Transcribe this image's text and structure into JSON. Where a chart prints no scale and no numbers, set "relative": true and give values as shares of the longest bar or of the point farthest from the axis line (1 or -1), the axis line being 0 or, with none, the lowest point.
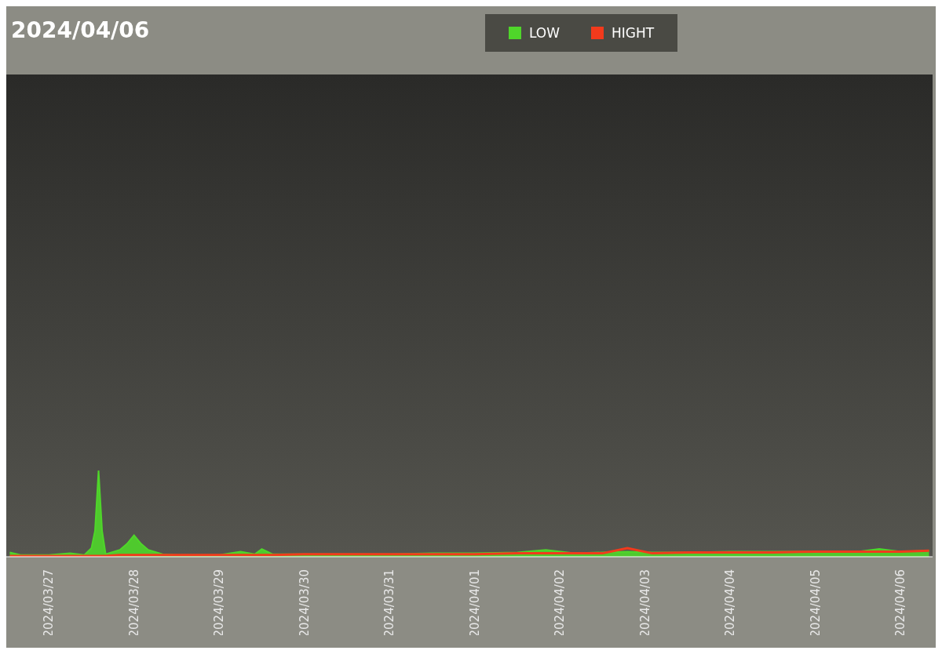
{
  "chart_data": {
    "type": "area",
    "title": "2024/04/06",
    "relative": true,
    "legend": "top",
    "x": [
      "2024-03-26T13:00",
      "2024-03-26T16:00",
      "2024-03-27T00:00",
      "2024-03-27T06:00",
      "2024-03-27T10:00",
      "2024-03-27T12:00",
      "2024-03-27T13:00",
      "2024-03-27T14:00",
      "2024-03-27T15:00",
      "2024-03-27T16:00",
      "2024-03-27T20:00",
      "2024-03-27T22:00",
      "2024-03-28T00:00",
      "2024-03-28T02:00",
      "2024-03-28T04:00",
      "2024-03-28T08:00",
      "2024-03-28T12:00",
      "2024-03-29T00:00",
      "2024-03-29T06:00",
      "2024-03-29T10:00",
      "2024-03-29T12:00",
      "2024-03-29T15:00",
      "2024-03-30T00:00",
      "2024-03-30T12:00",
      "2024-03-31T00:00",
      "2024-03-31T12:00",
      "2024-04-01T00:00",
      "2024-04-01T12:00",
      "2024-04-01T20:00",
      "2024-04-02T04:00",
      "2024-04-02T12:00",
      "2024-04-02T19:00",
      "2024-04-03T02:00",
      "2024-04-03T12:00",
      "2024-04-04T00:00",
      "2024-04-04T12:00",
      "2024-04-05T00:00",
      "2024-04-05T12:00",
      "2024-04-05T18:00",
      "2024-04-06T00:00",
      "2024-04-06T08:00"
    ],
    "xlim": [
      "2024-03-26T12:00",
      "2024-04-06T09:00"
    ],
    "xticks": [
      {
        "value": "2024-03-27",
        "label": "2024/03/27"
      },
      {
        "value": "2024-03-28",
        "label": "2024/03/28"
      },
      {
        "value": "2024-03-29",
        "label": "2024/03/29"
      },
      {
        "value": "2024-03-30",
        "label": "2024/03/30"
      },
      {
        "value": "2024-03-31",
        "label": "2024/03/31"
      },
      {
        "value": "2024-04-01",
        "label": "2024/04/01"
      },
      {
        "value": "2024-04-02",
        "label": "2024/04/02"
      },
      {
        "value": "2024-04-03",
        "label": "2024/04/03"
      },
      {
        "value": "2024-04-04",
        "label": "2024/04/04"
      },
      {
        "value": "2024-04-05",
        "label": "2024/04/05"
      },
      {
        "value": "2024-04-06",
        "label": "2024/04/06"
      }
    ],
    "series": [
      {
        "name": "LOW",
        "color": "#4fd62a",
        "values": [
          0.05,
          0.02,
          0.02,
          0.04,
          0.02,
          0.1,
          0.3,
          1,
          0.3,
          0.03,
          0.08,
          0.15,
          0.25,
          0.15,
          0.08,
          0.03,
          0.02,
          0.02,
          0.06,
          0.03,
          0.09,
          0.03,
          0.03,
          0.03,
          0.03,
          0.04,
          0.04,
          0.05,
          0.08,
          0.04,
          0.05,
          0.06,
          0.05,
          0.05,
          0.06,
          0.06,
          0.06,
          0.06,
          0.09,
          0.06,
          0.07
        ]
      },
      {
        "name": "HIGHT",
        "color": "#f23a1c",
        "type": "line",
        "values": [
          0.01,
          0.01,
          0.01,
          0.01,
          0.01,
          0.01,
          0.01,
          0.01,
          0.01,
          0.01,
          0.02,
          0.02,
          0.02,
          0.02,
          0.02,
          0.02,
          0.02,
          0.02,
          0.02,
          0.02,
          0.02,
          0.02,
          0.03,
          0.03,
          0.03,
          0.03,
          0.03,
          0.04,
          0.04,
          0.04,
          0.04,
          0.1,
          0.04,
          0.05,
          0.05,
          0.05,
          0.06,
          0.06,
          0.06,
          0.06,
          0.07
        ]
      }
    ]
  }
}
